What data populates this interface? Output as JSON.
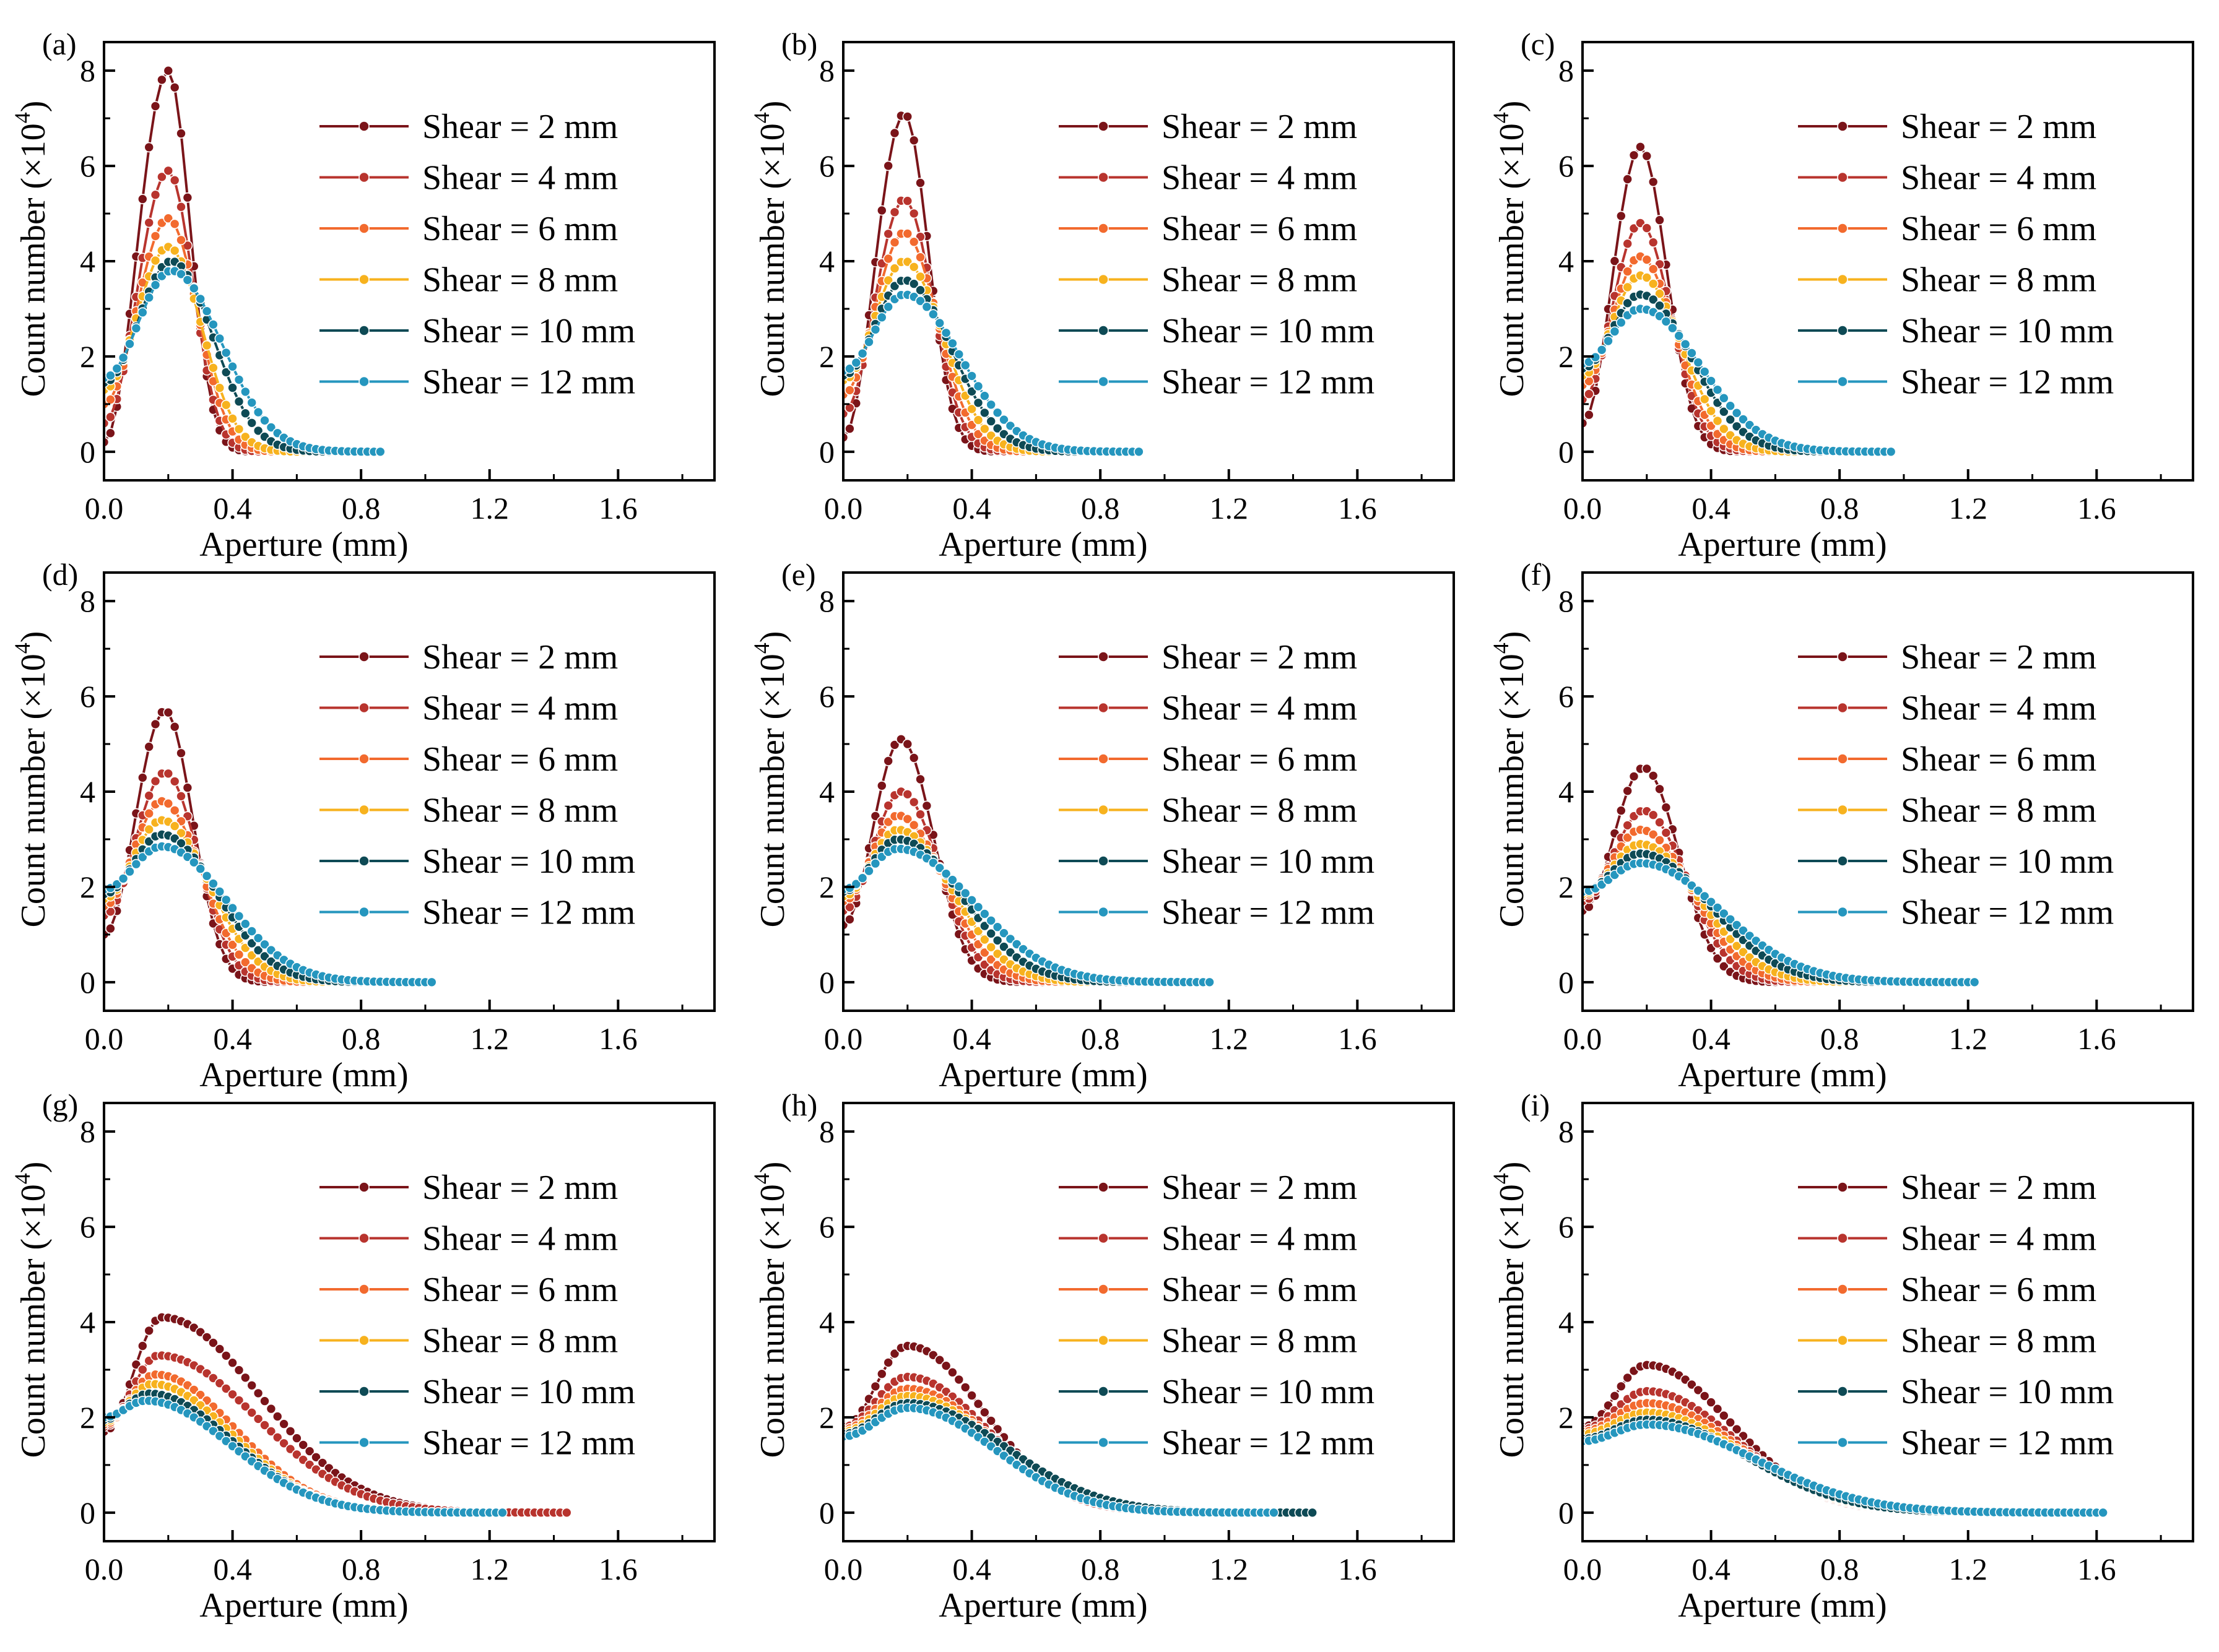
{
  "figure": {
    "background": "#ffffff"
  },
  "chart_data": [
    {
      "panel": "(a)",
      "type": "line",
      "xlabel": "Aperture (mm)",
      "ylabel": "Count number (×10",
      "ylabel_exp": "4",
      "ylabel_close": ")",
      "xlim": [
        0,
        1.9
      ],
      "ylim": [
        -0.6,
        8.6
      ],
      "xticks": [
        "0.0",
        "0.4",
        "0.8",
        "1.2",
        "1.6"
      ],
      "yticks": [
        "0",
        "2",
        "4",
        "6",
        "8"
      ],
      "series": [
        {
          "name": "Shear = 2 mm",
          "color": "#7a1419",
          "peak": 8.0,
          "mode": 0.2,
          "y0": 0.2,
          "xmax": 0.48
        },
        {
          "name": "Shear = 4 mm",
          "color": "#b8342e",
          "peak": 5.9,
          "mode": 0.2,
          "y0": 0.6,
          "xmax": 0.52
        },
        {
          "name": "Shear = 6 mm",
          "color": "#f26a2e",
          "peak": 4.9,
          "mode": 0.2,
          "y0": 1.0,
          "xmax": 0.58
        },
        {
          "name": "Shear = 8 mm",
          "color": "#f7b21e",
          "peak": 4.3,
          "mode": 0.2,
          "y0": 1.3,
          "xmax": 0.64
        },
        {
          "name": "Shear = 10 mm",
          "color": "#0e4a55",
          "peak": 4.0,
          "mode": 0.21,
          "y0": 1.45,
          "xmax": 0.75
        },
        {
          "name": "Shear = 12 mm",
          "color": "#2596be",
          "peak": 3.8,
          "mode": 0.21,
          "y0": 1.55,
          "xmax": 0.86
        }
      ]
    },
    {
      "panel": "(b)",
      "type": "line",
      "xlabel": "Aperture (mm)",
      "ylabel": "Count number (×10",
      "ylabel_exp": "4",
      "ylabel_close": ")",
      "xlim": [
        0,
        1.9
      ],
      "ylim": [
        -0.6,
        8.6
      ],
      "xticks": [
        "0.0",
        "0.4",
        "0.8",
        "1.2",
        "1.6"
      ],
      "yticks": [
        "0",
        "2",
        "4",
        "6",
        "8"
      ],
      "series": [
        {
          "name": "Shear = 2 mm",
          "color": "#7a1419",
          "peak": 7.1,
          "mode": 0.19,
          "y0": 0.3,
          "xmax": 0.5
        },
        {
          "name": "Shear = 4 mm",
          "color": "#b8342e",
          "peak": 5.3,
          "mode": 0.19,
          "y0": 0.8,
          "xmax": 0.56
        },
        {
          "name": "Shear = 6 mm",
          "color": "#f26a2e",
          "peak": 4.6,
          "mode": 0.19,
          "y0": 1.2,
          "xmax": 0.62
        },
        {
          "name": "Shear = 8 mm",
          "color": "#f7b21e",
          "peak": 4.0,
          "mode": 0.19,
          "y0": 1.5,
          "xmax": 0.7
        },
        {
          "name": "Shear = 10 mm",
          "color": "#0e4a55",
          "peak": 3.6,
          "mode": 0.19,
          "y0": 1.6,
          "xmax": 0.8
        },
        {
          "name": "Shear = 12 mm",
          "color": "#2596be",
          "peak": 3.3,
          "mode": 0.19,
          "y0": 1.7,
          "xmax": 0.92
        }
      ]
    },
    {
      "panel": "(c)",
      "type": "line",
      "xlabel": "Aperture (mm)",
      "ylabel": "Count number (×10",
      "ylabel_exp": "4",
      "ylabel_close": ")",
      "xlim": [
        0,
        1.9
      ],
      "ylim": [
        -0.6,
        8.6
      ],
      "xticks": [
        "0.0",
        "0.4",
        "0.8",
        "1.2",
        "1.6"
      ],
      "yticks": [
        "0",
        "2",
        "4",
        "6",
        "8"
      ],
      "series": [
        {
          "name": "Shear = 2 mm",
          "color": "#7a1419",
          "peak": 6.4,
          "mode": 0.18,
          "y0": 0.6,
          "xmax": 0.52
        },
        {
          "name": "Shear = 4 mm",
          "color": "#b8342e",
          "peak": 4.8,
          "mode": 0.18,
          "y0": 1.1,
          "xmax": 0.58
        },
        {
          "name": "Shear = 6 mm",
          "color": "#f26a2e",
          "peak": 4.1,
          "mode": 0.18,
          "y0": 1.4,
          "xmax": 0.64
        },
        {
          "name": "Shear = 8 mm",
          "color": "#f7b21e",
          "peak": 3.7,
          "mode": 0.18,
          "y0": 1.6,
          "xmax": 0.72
        },
        {
          "name": "Shear = 10 mm",
          "color": "#0e4a55",
          "peak": 3.3,
          "mode": 0.18,
          "y0": 1.75,
          "xmax": 0.84
        },
        {
          "name": "Shear = 12 mm",
          "color": "#2596be",
          "peak": 3.0,
          "mode": 0.18,
          "y0": 1.85,
          "xmax": 0.96
        }
      ]
    },
    {
      "panel": "(d)",
      "type": "line",
      "xlabel": "Aperture (mm)",
      "ylabel": "Count number (×10",
      "ylabel_exp": "4",
      "ylabel_close": ")",
      "xlim": [
        0,
        1.9
      ],
      "ylim": [
        -0.6,
        8.6
      ],
      "xticks": [
        "0.0",
        "0.4",
        "0.8",
        "1.2",
        "1.6"
      ],
      "yticks": [
        "0",
        "2",
        "4",
        "6",
        "8"
      ],
      "series": [
        {
          "name": "Shear = 2 mm",
          "color": "#7a1419",
          "peak": 5.7,
          "mode": 0.19,
          "y0": 1.0,
          "xmax": 0.55
        },
        {
          "name": "Shear = 4 mm",
          "color": "#b8342e",
          "peak": 4.4,
          "mode": 0.19,
          "y0": 1.4,
          "xmax": 0.62
        },
        {
          "name": "Shear = 6 mm",
          "color": "#f26a2e",
          "peak": 3.8,
          "mode": 0.18,
          "y0": 1.6,
          "xmax": 0.7
        },
        {
          "name": "Shear = 8 mm",
          "color": "#f7b21e",
          "peak": 3.4,
          "mode": 0.18,
          "y0": 1.75,
          "xmax": 0.8
        },
        {
          "name": "Shear = 10 mm",
          "color": "#0e4a55",
          "peak": 3.1,
          "mode": 0.18,
          "y0": 1.85,
          "xmax": 0.9
        },
        {
          "name": "Shear = 12 mm",
          "color": "#2596be",
          "peak": 2.85,
          "mode": 0.18,
          "y0": 1.95,
          "xmax": 1.02
        }
      ]
    },
    {
      "panel": "(e)",
      "type": "line",
      "xlabel": "Aperture (mm)",
      "ylabel": "Count number (×10",
      "ylabel_exp": "4",
      "ylabel_close": ")",
      "xlim": [
        0,
        1.9
      ],
      "ylim": [
        -0.6,
        8.6
      ],
      "xticks": [
        "0.0",
        "0.4",
        "0.8",
        "1.2",
        "1.6"
      ],
      "yticks": [
        "0",
        "2",
        "4",
        "6",
        "8"
      ],
      "series": [
        {
          "name": "Shear = 2 mm",
          "color": "#7a1419",
          "peak": 5.1,
          "mode": 0.18,
          "y0": 1.2,
          "xmax": 0.6
        },
        {
          "name": "Shear = 4 mm",
          "color": "#b8342e",
          "peak": 4.0,
          "mode": 0.18,
          "y0": 1.5,
          "xmax": 0.68
        },
        {
          "name": "Shear = 6 mm",
          "color": "#f26a2e",
          "peak": 3.5,
          "mode": 0.17,
          "y0": 1.7,
          "xmax": 0.78
        },
        {
          "name": "Shear = 8 mm",
          "color": "#f7b21e",
          "peak": 3.2,
          "mode": 0.17,
          "y0": 1.8,
          "xmax": 0.88
        },
        {
          "name": "Shear = 10 mm",
          "color": "#0e4a55",
          "peak": 3.0,
          "mode": 0.17,
          "y0": 1.9,
          "xmax": 1.0
        },
        {
          "name": "Shear = 12 mm",
          "color": "#2596be",
          "peak": 2.8,
          "mode": 0.17,
          "y0": 1.95,
          "xmax": 1.15
        }
      ]
    },
    {
      "panel": "(f)",
      "type": "line",
      "xlabel": "Aperture (mm)",
      "ylabel": "Count number (×10",
      "ylabel_exp": "4",
      "ylabel_close": ")",
      "xlim": [
        0,
        1.9
      ],
      "ylim": [
        -0.6,
        8.6
      ],
      "xticks": [
        "0.0",
        "0.4",
        "0.8",
        "1.2",
        "1.6"
      ],
      "yticks": [
        "0",
        "2",
        "4",
        "6",
        "8"
      ],
      "series": [
        {
          "name": "Shear = 2 mm",
          "color": "#7a1419",
          "peak": 4.5,
          "mode": 0.19,
          "y0": 1.5,
          "xmax": 0.65
        },
        {
          "name": "Shear = 4 mm",
          "color": "#b8342e",
          "peak": 3.6,
          "mode": 0.19,
          "y0": 1.7,
          "xmax": 0.75
        },
        {
          "name": "Shear = 6 mm",
          "color": "#f26a2e",
          "peak": 3.2,
          "mode": 0.18,
          "y0": 1.8,
          "xmax": 0.85
        },
        {
          "name": "Shear = 8 mm",
          "color": "#f7b21e",
          "peak": 2.9,
          "mode": 0.18,
          "y0": 1.85,
          "xmax": 0.95
        },
        {
          "name": "Shear = 10 mm",
          "color": "#0e4a55",
          "peak": 2.7,
          "mode": 0.18,
          "y0": 1.9,
          "xmax": 1.08
        },
        {
          "name": "Shear = 12 mm",
          "color": "#2596be",
          "peak": 2.5,
          "mode": 0.18,
          "y0": 1.9,
          "xmax": 1.22
        }
      ]
    },
    {
      "panel": "(g)",
      "type": "line",
      "xlabel": "Aperture (mm)",
      "ylabel": "Count number (×10",
      "ylabel_exp": "4",
      "ylabel_close": ")",
      "xlim": [
        0,
        1.9
      ],
      "ylim": [
        -0.6,
        8.6
      ],
      "xticks": [
        "0.0",
        "0.4",
        "0.8",
        "1.2",
        "1.6"
      ],
      "yticks": [
        "0",
        "2",
        "4",
        "6",
        "8"
      ],
      "series": [
        {
          "name": "Shear = 2 mm",
          "color": "#7a1419",
          "peak": 4.1,
          "mode": 0.18,
          "y0": 1.7,
          "xmax": 1.45
        },
        {
          "name": "Shear = 4 mm",
          "color": "#b8342e",
          "peak": 3.3,
          "mode": 0.17,
          "y0": 1.8,
          "xmax": 1.45
        },
        {
          "name": "Shear = 6 mm",
          "color": "#f26a2e",
          "peak": 2.9,
          "mode": 0.16,
          "y0": 1.85,
          "xmax": 1.2
        },
        {
          "name": "Shear = 8 mm",
          "color": "#f7b21e",
          "peak": 2.7,
          "mode": 0.15,
          "y0": 1.9,
          "xmax": 1.2
        },
        {
          "name": "Shear = 10 mm",
          "color": "#0e4a55",
          "peak": 2.5,
          "mode": 0.14,
          "y0": 1.95,
          "xmax": 1.22
        },
        {
          "name": "Shear = 12 mm",
          "color": "#2596be",
          "peak": 2.35,
          "mode": 0.13,
          "y0": 2.0,
          "xmax": 1.24
        }
      ]
    },
    {
      "panel": "(h)",
      "type": "line",
      "xlabel": "Aperture (mm)",
      "ylabel": "Count number (×10",
      "ylabel_exp": "4",
      "ylabel_close": ")",
      "xlim": [
        0,
        1.9
      ],
      "ylim": [
        -0.6,
        8.6
      ],
      "xticks": [
        "0.0",
        "0.4",
        "0.8",
        "1.2",
        "1.6"
      ],
      "yticks": [
        "0",
        "2",
        "4",
        "6",
        "8"
      ],
      "series": [
        {
          "name": "Shear = 2 mm",
          "color": "#7a1419",
          "peak": 3.5,
          "mode": 0.2,
          "y0": 1.8,
          "xmax": 1.2
        },
        {
          "name": "Shear = 4 mm",
          "color": "#b8342e",
          "peak": 2.85,
          "mode": 0.2,
          "y0": 1.8,
          "xmax": 1.25
        },
        {
          "name": "Shear = 6 mm",
          "color": "#f26a2e",
          "peak": 2.6,
          "mode": 0.2,
          "y0": 1.75,
          "xmax": 1.3
        },
        {
          "name": "Shear = 8 mm",
          "color": "#f7b21e",
          "peak": 2.45,
          "mode": 0.2,
          "y0": 1.7,
          "xmax": 1.35
        },
        {
          "name": "Shear = 10 mm",
          "color": "#0e4a55",
          "peak": 2.3,
          "mode": 0.2,
          "y0": 1.65,
          "xmax": 1.46
        },
        {
          "name": "Shear = 12 mm",
          "color": "#2596be",
          "peak": 2.2,
          "mode": 0.2,
          "y0": 1.6,
          "xmax": 1.34
        }
      ]
    },
    {
      "panel": "(i)",
      "type": "line",
      "xlabel": "Aperture (mm)",
      "ylabel": "Count number (×10",
      "ylabel_exp": "4",
      "ylabel_close": ")",
      "xlim": [
        0,
        1.9
      ],
      "ylim": [
        -0.6,
        8.6
      ],
      "xticks": [
        "0.0",
        "0.4",
        "0.8",
        "1.2",
        "1.6"
      ],
      "yticks": [
        "0",
        "2",
        "4",
        "6",
        "8"
      ],
      "series": [
        {
          "name": "Shear = 2 mm",
          "color": "#7a1419",
          "peak": 3.1,
          "mode": 0.2,
          "y0": 1.8,
          "xmax": 1.3
        },
        {
          "name": "Shear = 4 mm",
          "color": "#b8342e",
          "peak": 2.55,
          "mode": 0.2,
          "y0": 1.75,
          "xmax": 1.35
        },
        {
          "name": "Shear = 6 mm",
          "color": "#f26a2e",
          "peak": 2.3,
          "mode": 0.2,
          "y0": 1.7,
          "xmax": 1.4
        },
        {
          "name": "Shear = 8 mm",
          "color": "#f7b21e",
          "peak": 2.1,
          "mode": 0.2,
          "y0": 1.65,
          "xmax": 1.45
        },
        {
          "name": "Shear = 10 mm",
          "color": "#0e4a55",
          "peak": 1.95,
          "mode": 0.2,
          "y0": 1.55,
          "xmax": 1.5
        },
        {
          "name": "Shear = 12 mm",
          "color": "#2596be",
          "peak": 1.85,
          "mode": 0.2,
          "y0": 1.5,
          "xmax": 1.62
        }
      ]
    }
  ]
}
